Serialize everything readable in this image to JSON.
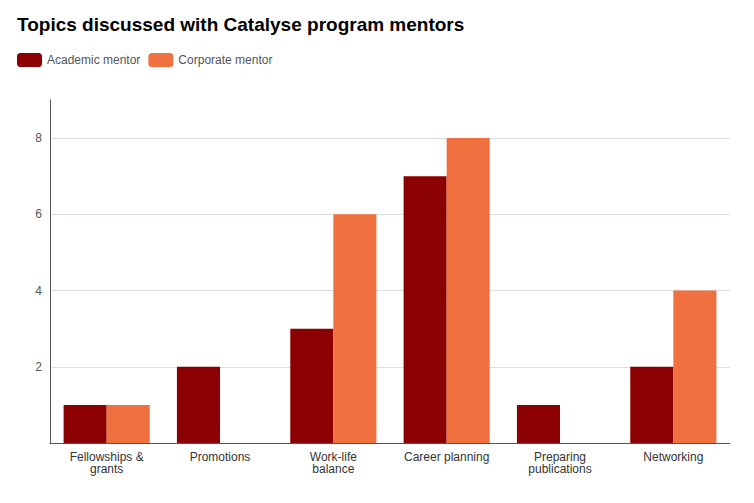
{
  "chart_data": {
    "type": "bar",
    "title": "Topics discussed with Catalyse program mentors",
    "categories": [
      "Fellowships &\ngrants",
      "Promotions",
      "Work-life\nbalance",
      "Career planning",
      "Preparing\npublications",
      "Networking"
    ],
    "series": [
      {
        "name": "Academic mentor",
        "color": "#8B0000",
        "values": [
          1,
          2,
          3,
          7,
          1,
          2
        ]
      },
      {
        "name": "Corporate mentor",
        "color": "#F07040",
        "values": [
          1,
          0,
          6,
          8,
          0,
          4
        ]
      }
    ],
    "ylim": [
      0,
      9
    ],
    "yticks": [
      2,
      4,
      6,
      8
    ],
    "grid": true,
    "legend": "upper left"
  }
}
